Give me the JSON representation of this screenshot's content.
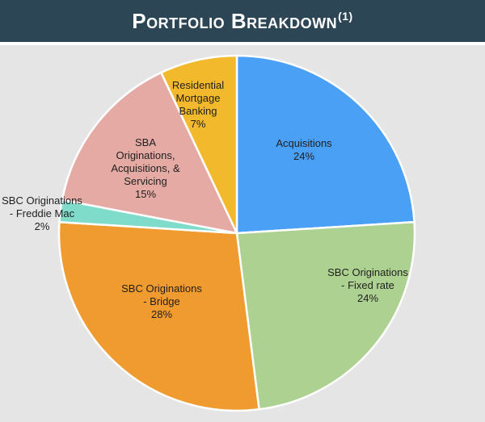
{
  "header": {
    "title": "Portfolio Breakdown",
    "superscript": "(1)"
  },
  "chart_data": {
    "type": "pie",
    "title": "Portfolio Breakdown",
    "slices": [
      {
        "lines": [
          "Acquisitions",
          "24%"
        ],
        "label": "Acquisitions",
        "value": 24,
        "color": "#4aa0f5"
      },
      {
        "lines": [
          "SBC Originations",
          "- Fixed rate",
          "24%"
        ],
        "label": "SBC Originations - Fixed rate",
        "value": 24,
        "color": "#acd190"
      },
      {
        "lines": [
          "SBC Originations",
          "- Bridge",
          "28%"
        ],
        "label": "SBC Originations - Bridge",
        "value": 28,
        "color": "#f09b30"
      },
      {
        "lines": [
          "SBC Originations",
          "- Freddie Mac",
          "2%"
        ],
        "label": "SBC Originations - Freddie Mac",
        "value": 2,
        "color": "#7fdcca"
      },
      {
        "lines": [
          "SBA",
          "Originations,",
          "Acquisitions, &",
          "Servicing",
          "15%"
        ],
        "label": "SBA Originations, Acquisitions, & Servicing",
        "value": 15,
        "color": "#e4aaa3"
      },
      {
        "lines": [
          "Residential",
          "Mortgage",
          "Banking",
          "7%"
        ],
        "label": "Residential Mortgage Banking",
        "value": 7,
        "color": "#f2b92d"
      }
    ]
  }
}
